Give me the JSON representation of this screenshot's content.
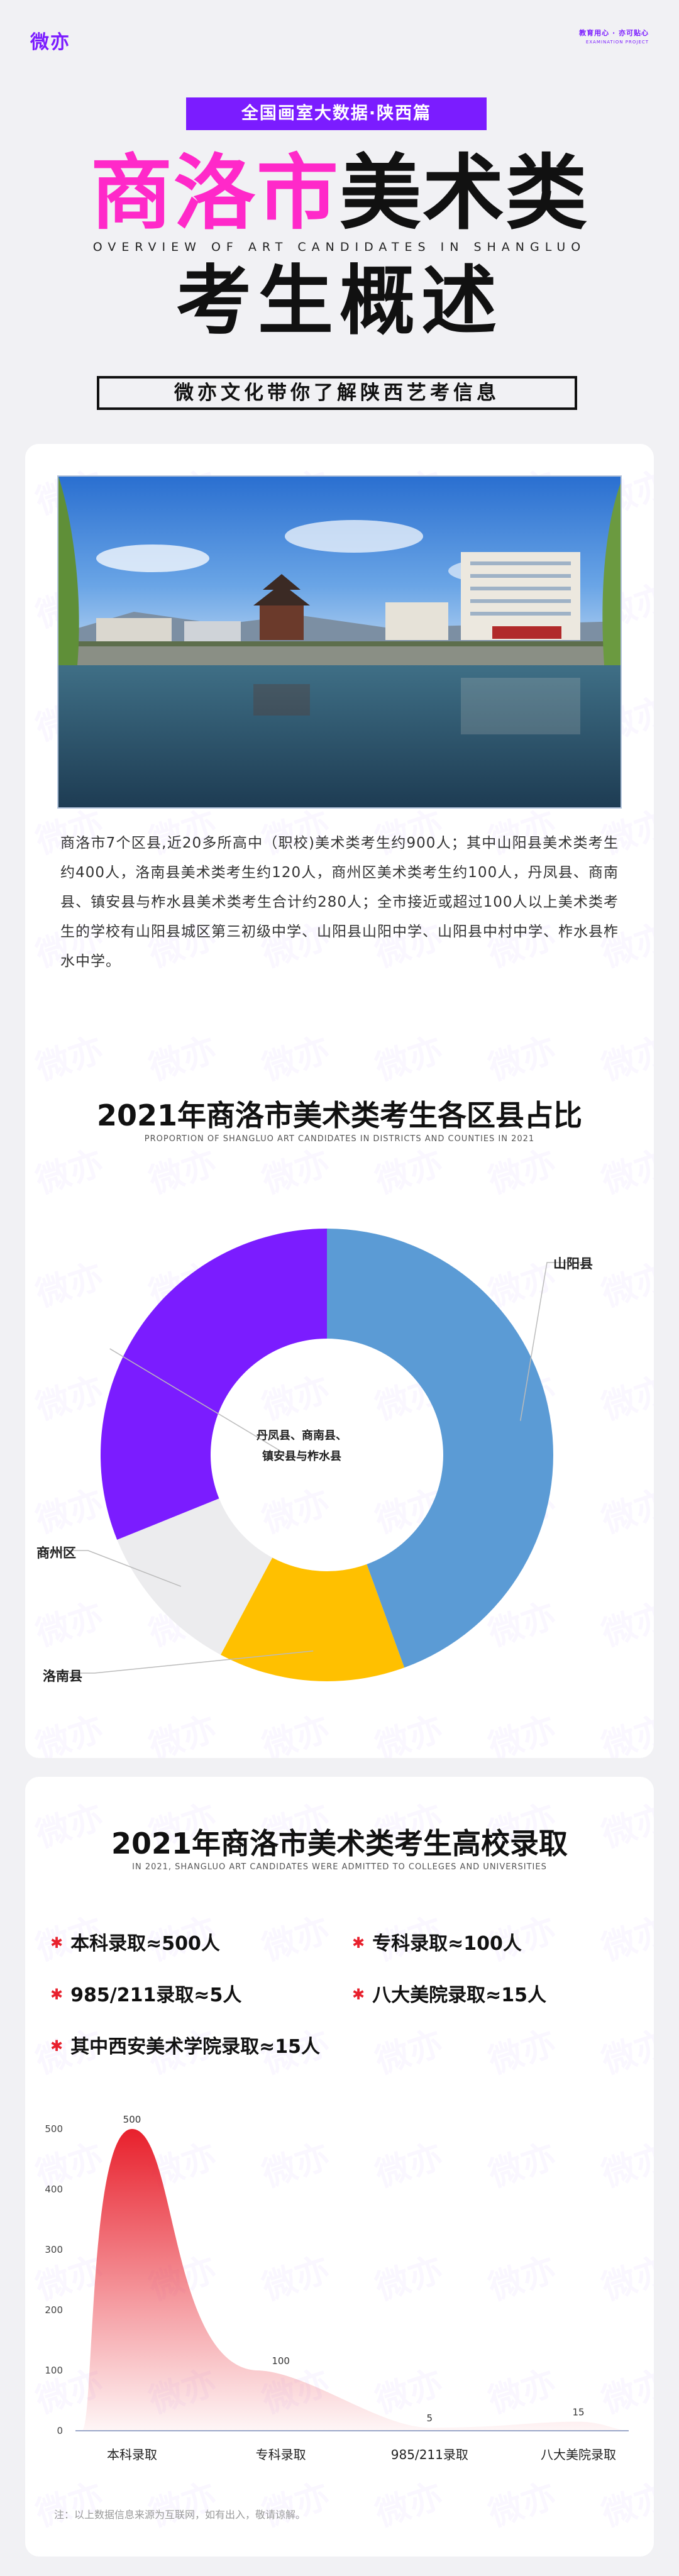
{
  "header": {
    "logo": "微亦",
    "brand_line1": "教育用心 · 亦可贴心",
    "brand_line2": "EXAMINATION PROJECT",
    "tag": "全国画室大数据·陕西篇",
    "title_pink": "商洛市",
    "title_dark": "美术类",
    "english": "OVERVIEW OF ART CANDIDATES IN SHANGLUO",
    "title2": "考生概述",
    "subtitle": "微亦文化带你了解陕西艺考信息"
  },
  "intro": {
    "paragraph": "商洛市7个区县,近20多所高中（职校)美术类考生约900人；其中山阳县美术类考生约400人，洛南县美术类考生约120人，商州区美术类考生约100人，丹凤县、商南县、镇安县与柞水县美术类考生合计约280人；全市接近或超过100人以上美术类考生的学校有山阳县城区第三初级中学、山阳县山阳中学、山阳县中村中学、柞水县柞水中学。"
  },
  "colors": {
    "accent": "#7b1cff",
    "pink": "#ff29c9",
    "blue": "#5b9bd5",
    "yellow": "#ffc000",
    "gray": "#ececee",
    "red": "#e8202c"
  },
  "chart1": {
    "title": "2021年商洛市美术类考生各区县占比",
    "subtitle": "PROPORTION OF SHANGLUO ART CANDIDATES IN DISTRICTS AND COUNTIES IN 2021"
  },
  "chart2": {
    "title": "2021年商洛市美术类考生高校录取",
    "subtitle": "IN 2021, SHANGLUO ART CANDIDATES WERE ADMITTED TO COLLEGES AND UNIVERSITIES",
    "stats": [
      "本科录取≈500人",
      "专科录取≈100人",
      "985/211录取≈5人",
      "八大美院录取≈15人",
      "其中西安美术学院录取≈15人"
    ],
    "note": "注：以上数据信息来源为互联网，如有出入，敬请谅解。"
  },
  "chart_data": [
    {
      "type": "pie",
      "title": "2021年商洛市美术类考生各区县占比",
      "labels": [
        "山阳县",
        "洛南县",
        "商州区",
        "丹凤县、商南县、镇安县与柞水县"
      ],
      "values": [
        400,
        120,
        100,
        280
      ],
      "colors": [
        "#5b9bd5",
        "#ffc000",
        "#ececee",
        "#7b1cff"
      ],
      "donut": true
    },
    {
      "type": "area",
      "title": "2021年商洛市美术类考生高校录取",
      "categories": [
        "本科录取",
        "专科录取",
        "985/211录取",
        "八大美院录取"
      ],
      "values": [
        500,
        100,
        5,
        15
      ],
      "ylim": [
        0,
        500
      ],
      "yticks": [
        0,
        100,
        200,
        300,
        400,
        500
      ],
      "grid": false
    }
  ]
}
